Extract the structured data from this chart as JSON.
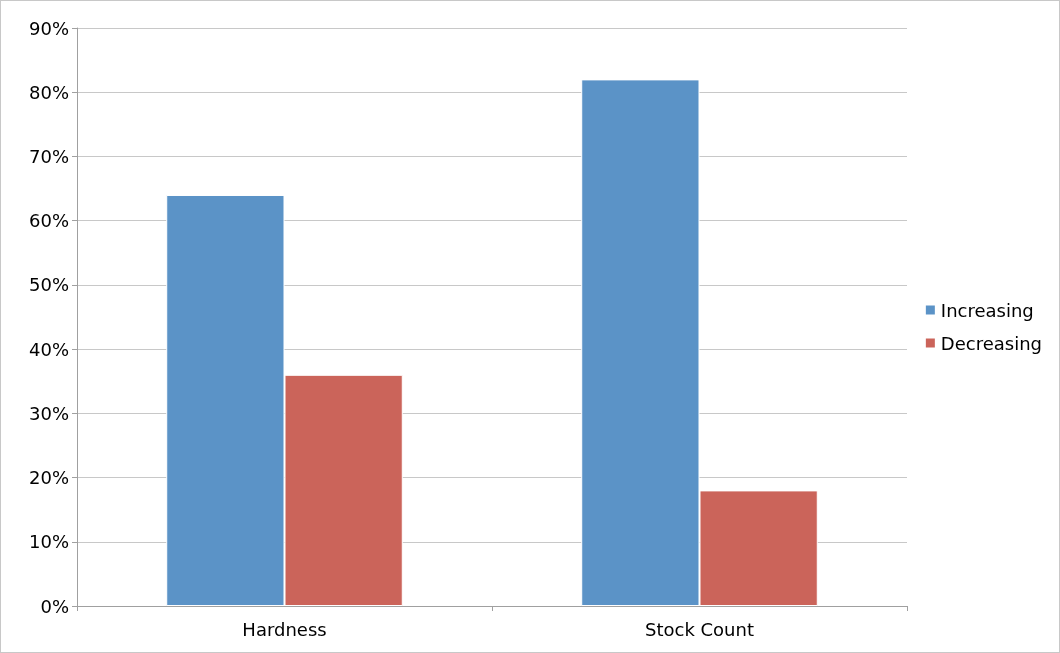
{
  "chart_data": {
    "type": "bar",
    "categories": [
      "Hardness",
      "Stock Count"
    ],
    "series": [
      {
        "name": "Increasing",
        "color": "#5b93c7",
        "values": [
          64,
          82
        ]
      },
      {
        "name": "Decreasing",
        "color": "#cb645a",
        "values": [
          36,
          18
        ]
      }
    ],
    "ylim": [
      0,
      90
    ],
    "yticks": [
      {
        "value": 0,
        "label": "0%"
      },
      {
        "value": 10,
        "label": "10%"
      },
      {
        "value": 20,
        "label": "20%"
      },
      {
        "value": 30,
        "label": "30%"
      },
      {
        "value": 40,
        "label": "40%"
      },
      {
        "value": 50,
        "label": "50%"
      },
      {
        "value": 60,
        "label": "60%"
      },
      {
        "value": 70,
        "label": "70%"
      },
      {
        "value": 80,
        "label": "80%"
      },
      {
        "value": 90,
        "label": "90%"
      }
    ],
    "grid": "y",
    "legend": "right"
  }
}
